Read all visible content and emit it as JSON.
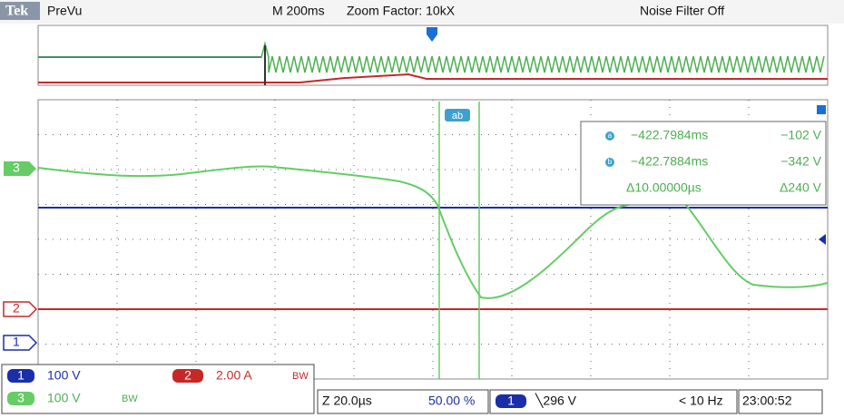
{
  "header": {
    "brand": "Tek",
    "mode": "PreVu",
    "timebase": "M 200ms",
    "zoom": "Zoom Factor: 10kX",
    "filter": "Noise Filter Off"
  },
  "cursors": {
    "label": "ab",
    "rows": [
      {
        "id": "a",
        "time": "−422.7984ms",
        "volts": "−102 V"
      },
      {
        "id": "b",
        "time": "−422.7884ms",
        "volts": "−342 V"
      }
    ],
    "delta": {
      "time": "Δ10.00000µs",
      "volts": "Δ240 V"
    }
  },
  "channel_markers": {
    "ch3": "3",
    "ch2": "2",
    "ch1": "1"
  },
  "status": {
    "ch1": {
      "id": "1",
      "scale": "100 V"
    },
    "ch2": {
      "id": "2",
      "scale": "2.00 A",
      "bw": "BW"
    },
    "ch3": {
      "id": "3",
      "scale": "100 V",
      "bw": "BW"
    },
    "zoom_scale": "Z 20.0µs",
    "position": "50.00 %",
    "trigger": {
      "source": "1",
      "level": "╲296 V",
      "freq": "< 10 Hz"
    },
    "time": "23:00:52"
  }
}
